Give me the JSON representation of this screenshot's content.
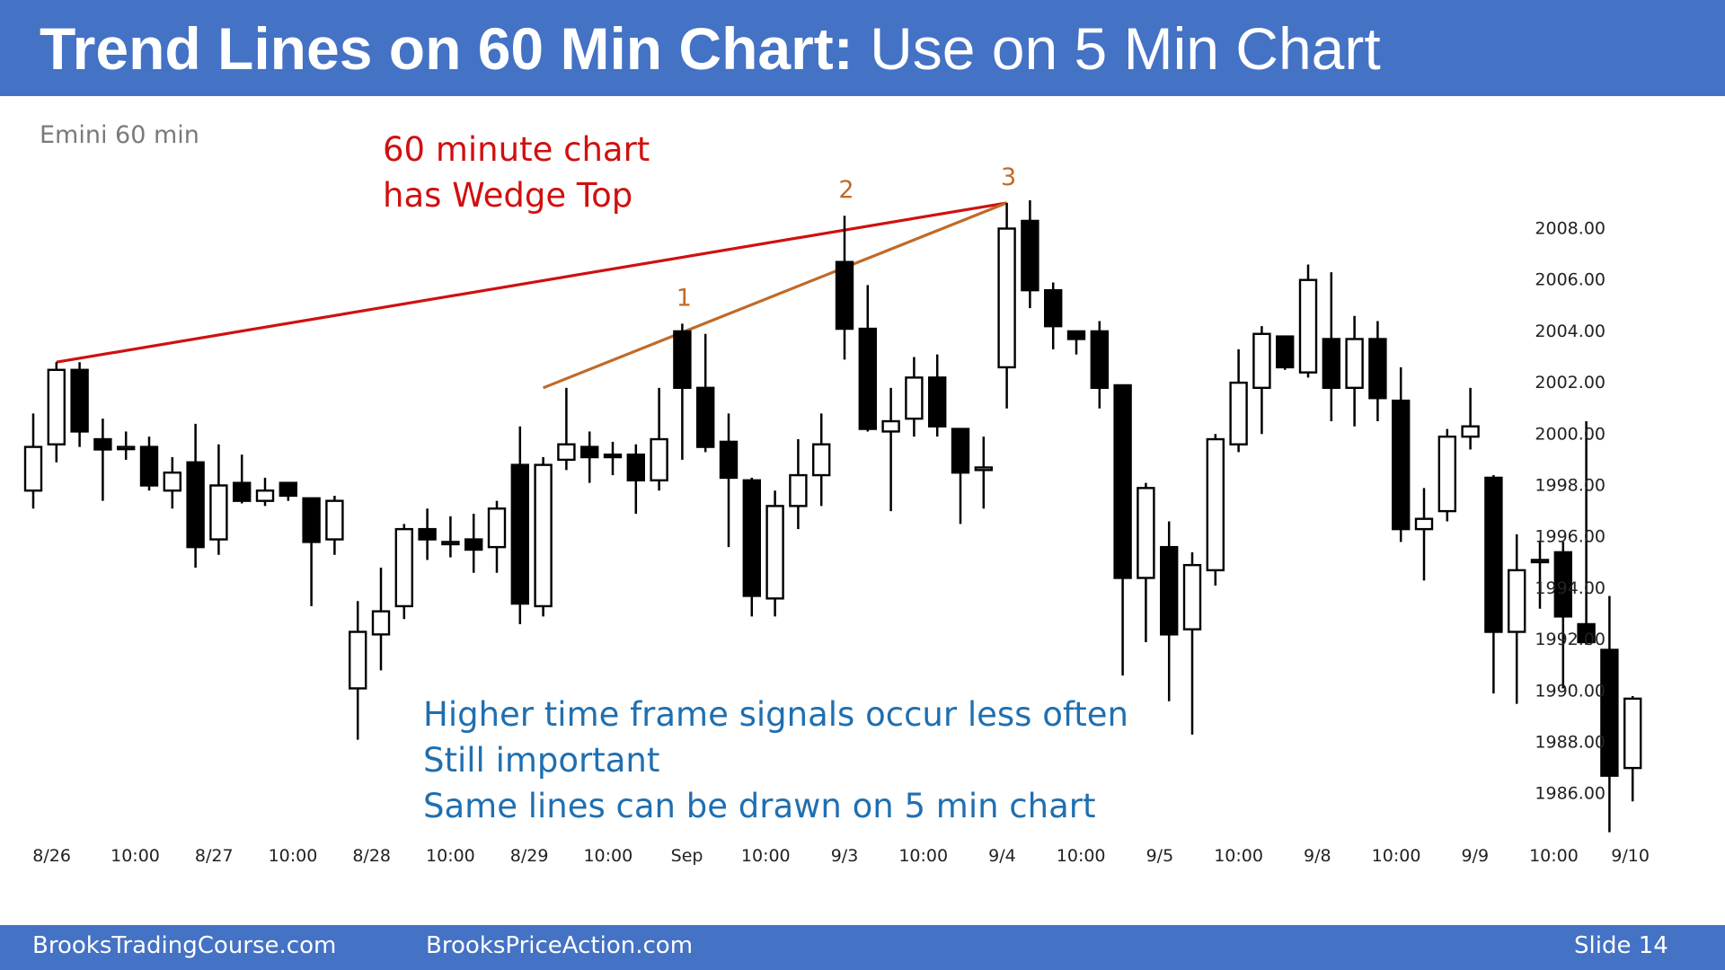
{
  "slide": {
    "title_bold": "Trend Lines on 60 Min Chart:",
    "title_rest": " Use on 5 Min Chart",
    "footer_left": "BrooksTradingCourse.com",
    "footer_center": "BrooksPriceAction.com",
    "footer_right": "Slide  14",
    "header_color": "#4472c4"
  },
  "chart_data": {
    "type": "candlestick",
    "title": "Emini 60 min",
    "y_ticks": [
      "2008.00",
      "2006.00",
      "2004.00",
      "2002.00",
      "2000.00",
      "1998.00",
      "1996.00",
      "1994.00",
      "1992.00",
      "1990.00",
      "1988.00",
      "1986.00"
    ],
    "ylim": [
      1984.5,
      2008.5
    ],
    "x_labels": [
      {
        "label": "8/26",
        "bar": 0.8
      },
      {
        "label": "10:00",
        "bar": 4.4
      },
      {
        "label": "8/27",
        "bar": 7.8
      },
      {
        "label": "10:00",
        "bar": 11.2
      },
      {
        "label": "8/28",
        "bar": 14.6
      },
      {
        "label": "10:00",
        "bar": 18
      },
      {
        "label": "8/29",
        "bar": 21.4
      },
      {
        "label": "10:00",
        "bar": 24.8
      },
      {
        "label": "Sep",
        "bar": 28.2
      },
      {
        "label": "10:00",
        "bar": 31.6
      },
      {
        "label": "9/3",
        "bar": 35
      },
      {
        "label": "10:00",
        "bar": 38.4
      },
      {
        "label": "9/4",
        "bar": 41.8
      },
      {
        "label": "10:00",
        "bar": 45.2
      },
      {
        "label": "9/5",
        "bar": 48.6
      },
      {
        "label": "10:00",
        "bar": 52
      },
      {
        "label": "9/8",
        "bar": 55.4
      },
      {
        "label": "10:00",
        "bar": 58.8
      },
      {
        "label": "9/9",
        "bar": 62.2
      },
      {
        "label": "10:00",
        "bar": 65.6
      },
      {
        "label": "9/10",
        "bar": 68.9
      }
    ],
    "candles": [
      {
        "o": 1997.8,
        "h": 2000.8,
        "l": 1997.1,
        "c": 1999.5
      },
      {
        "o": 1999.6,
        "h": 2002.8,
        "l": 1998.9,
        "c": 2002.5
      },
      {
        "o": 2002.5,
        "h": 2002.8,
        "l": 1999.5,
        "c": 2000.1
      },
      {
        "o": 1999.8,
        "h": 2000.6,
        "l": 1997.4,
        "c": 1999.4
      },
      {
        "o": 1999.5,
        "h": 2000.1,
        "l": 1999.0,
        "c": 1999.5
      },
      {
        "o": 1999.5,
        "h": 1999.9,
        "l": 1997.8,
        "c": 1998.0
      },
      {
        "o": 1997.8,
        "h": 1999.1,
        "l": 1997.1,
        "c": 1998.5
      },
      {
        "o": 1998.9,
        "h": 2000.4,
        "l": 1994.8,
        "c": 1995.6
      },
      {
        "o": 1995.9,
        "h": 1999.6,
        "l": 1995.3,
        "c": 1998.0
      },
      {
        "o": 1998.1,
        "h": 1999.2,
        "l": 1997.3,
        "c": 1997.4
      },
      {
        "o": 1997.4,
        "h": 1998.3,
        "l": 1997.2,
        "c": 1997.8
      },
      {
        "o": 1998.1,
        "h": 1998.1,
        "l": 1997.4,
        "c": 1997.6
      },
      {
        "o": 1997.5,
        "h": 1997.5,
        "l": 1993.3,
        "c": 1995.8
      },
      {
        "o": 1995.9,
        "h": 1997.6,
        "l": 1995.3,
        "c": 1997.4
      },
      {
        "o": 1990.1,
        "h": 1993.5,
        "l": 1988.1,
        "c": 1992.3
      },
      {
        "o": 1992.2,
        "h": 1994.8,
        "l": 1990.8,
        "c": 1993.1
      },
      {
        "o": 1993.3,
        "h": 1996.5,
        "l": 1992.8,
        "c": 1996.3
      },
      {
        "o": 1996.3,
        "h": 1997.1,
        "l": 1995.1,
        "c": 1995.9
      },
      {
        "o": 1995.8,
        "h": 1996.8,
        "l": 1995.2,
        "c": 1995.8
      },
      {
        "o": 1995.9,
        "h": 1996.9,
        "l": 1994.6,
        "c": 1995.5
      },
      {
        "o": 1995.6,
        "h": 1997.4,
        "l": 1994.6,
        "c": 1997.1
      },
      {
        "o": 1998.8,
        "h": 2000.3,
        "l": 1992.6,
        "c": 1993.4
      },
      {
        "o": 1993.3,
        "h": 1999.1,
        "l": 1992.9,
        "c": 1998.8
      },
      {
        "o": 1999.0,
        "h": 2001.8,
        "l": 1998.6,
        "c": 1999.6
      },
      {
        "o": 1999.5,
        "h": 2000.1,
        "l": 1998.1,
        "c": 1999.1
      },
      {
        "o": 1999.2,
        "h": 1999.7,
        "l": 1998.4,
        "c": 1999.1
      },
      {
        "o": 1999.2,
        "h": 1999.6,
        "l": 1996.9,
        "c": 1998.2
      },
      {
        "o": 1998.2,
        "h": 2001.8,
        "l": 1997.8,
        "c": 1999.8
      },
      {
        "o": 2004.0,
        "h": 2004.3,
        "l": 1999.0,
        "c": 2001.8
      },
      {
        "o": 2001.8,
        "h": 2003.9,
        "l": 1999.3,
        "c": 1999.5
      },
      {
        "o": 1999.7,
        "h": 2000.8,
        "l": 1995.6,
        "c": 1998.3
      },
      {
        "o": 1998.2,
        "h": 1998.3,
        "l": 1992.9,
        "c": 1993.7
      },
      {
        "o": 1993.6,
        "h": 1997.8,
        "l": 1992.9,
        "c": 1997.2
      },
      {
        "o": 1997.2,
        "h": 1999.8,
        "l": 1996.3,
        "c": 1998.4
      },
      {
        "o": 1998.4,
        "h": 2000.8,
        "l": 1997.2,
        "c": 1999.6
      },
      {
        "o": 2006.7,
        "h": 2008.5,
        "l": 2002.9,
        "c": 2004.1
      },
      {
        "o": 2004.1,
        "h": 2005.8,
        "l": 2000.1,
        "c": 2000.2
      },
      {
        "o": 2000.1,
        "h": 2001.8,
        "l": 1997.0,
        "c": 2000.5
      },
      {
        "o": 2000.6,
        "h": 2003.0,
        "l": 1999.9,
        "c": 2002.2
      },
      {
        "o": 2002.2,
        "h": 2003.1,
        "l": 1999.9,
        "c": 2000.3
      },
      {
        "o": 2000.2,
        "h": 2000.2,
        "l": 1996.5,
        "c": 1998.5
      },
      {
        "o": 1998.6,
        "h": 1999.9,
        "l": 1997.1,
        "c": 1998.7
      },
      {
        "o": 2002.6,
        "h": 2009.0,
        "l": 2001.0,
        "c": 2008.0
      },
      {
        "o": 2008.3,
        "h": 2009.1,
        "l": 2004.9,
        "c": 2005.6
      },
      {
        "o": 2005.6,
        "h": 2005.9,
        "l": 2003.3,
        "c": 2004.2
      },
      {
        "o": 2004.0,
        "h": 2004.0,
        "l": 2003.1,
        "c": 2003.7
      },
      {
        "o": 2004.0,
        "h": 2004.4,
        "l": 2001.0,
        "c": 2001.8
      },
      {
        "o": 2001.9,
        "h": 2001.9,
        "l": 1990.6,
        "c": 1994.4
      },
      {
        "o": 1994.4,
        "h": 1998.1,
        "l": 1991.9,
        "c": 1997.9
      },
      {
        "o": 1995.6,
        "h": 1996.6,
        "l": 1989.6,
        "c": 1992.2
      },
      {
        "o": 1992.4,
        "h": 1995.4,
        "l": 1988.3,
        "c": 1994.9
      },
      {
        "o": 1994.7,
        "h": 2000.0,
        "l": 1994.1,
        "c": 1999.8
      },
      {
        "o": 1999.6,
        "h": 2003.3,
        "l": 1999.3,
        "c": 2002.0
      },
      {
        "o": 2001.8,
        "h": 2004.2,
        "l": 2000.0,
        "c": 2003.9
      },
      {
        "o": 2003.8,
        "h": 2003.8,
        "l": 2002.5,
        "c": 2002.6
      },
      {
        "o": 2002.4,
        "h": 2006.6,
        "l": 2002.2,
        "c": 2006.0
      },
      {
        "o": 2003.7,
        "h": 2006.3,
        "l": 2000.5,
        "c": 2001.8
      },
      {
        "o": 2001.8,
        "h": 2004.6,
        "l": 2000.3,
        "c": 2003.7
      },
      {
        "o": 2003.7,
        "h": 2004.4,
        "l": 2000.5,
        "c": 2001.4
      },
      {
        "o": 2001.3,
        "h": 2002.6,
        "l": 1995.8,
        "c": 1996.3
      },
      {
        "o": 1996.3,
        "h": 1997.9,
        "l": 1994.3,
        "c": 1996.7
      },
      {
        "o": 1997.0,
        "h": 2000.2,
        "l": 1996.6,
        "c": 1999.9
      },
      {
        "o": 1999.9,
        "h": 2001.8,
        "l": 1999.4,
        "c": 2000.3
      },
      {
        "o": 1998.3,
        "h": 1998.4,
        "l": 1989.9,
        "c": 1992.3
      },
      {
        "o": 1992.3,
        "h": 1996.1,
        "l": 1989.5,
        "c": 1994.7
      },
      {
        "o": 1995.1,
        "h": 1995.8,
        "l": 1993.2,
        "c": 1995.1
      },
      {
        "o": 1995.4,
        "h": 1995.8,
        "l": 1990.1,
        "c": 1992.9
      },
      {
        "o": 1992.6,
        "h": 2000.5,
        "l": 1991.8,
        "c": 1991.9
      },
      {
        "o": 1991.6,
        "h": 1993.7,
        "l": 1984.5,
        "c": 1986.7
      },
      {
        "o": 1987.0,
        "h": 1989.8,
        "l": 1985.7,
        "c": 1989.7
      }
    ],
    "trend_lines": [
      {
        "name": "wedge-top-line",
        "color": "#d01010",
        "from": {
          "bar": 1,
          "price": 2002.8
        },
        "to": {
          "bar": 42,
          "price": 2009.0
        }
      },
      {
        "name": "wedge-channel-line",
        "color": "#c06a28",
        "from": {
          "bar": 22,
          "price": 2001.8
        },
        "to": {
          "bar": 42,
          "price": 2009.0
        }
      }
    ],
    "pivot_labels": [
      {
        "label": "1",
        "bar": 28,
        "price": 2004.3
      },
      {
        "label": "2",
        "bar": 35,
        "price": 2008.5
      },
      {
        "label": "3",
        "bar": 42,
        "price": 2009.0
      }
    ],
    "annotations": {
      "red_note": [
        "60 minute chart",
        "has Wedge Top"
      ],
      "blue_note": [
        "Higher time frame signals occur less often",
        "Still important",
        "Same lines can be drawn on 5 min chart"
      ]
    },
    "colors": {
      "red": "#d01010",
      "orange": "#c06a28",
      "blue": "#1f6fb0"
    }
  }
}
